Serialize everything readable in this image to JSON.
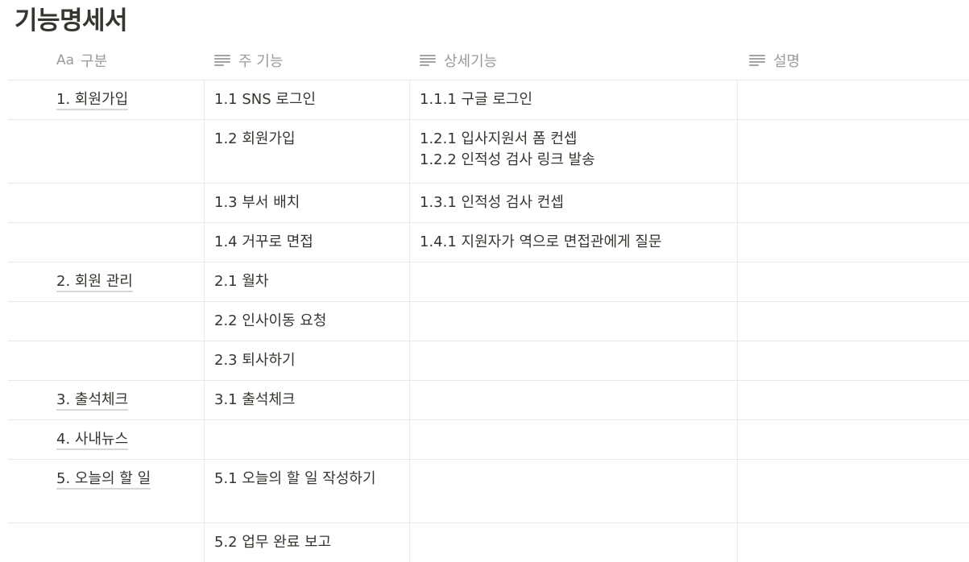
{
  "page": {
    "title": "기능명세서"
  },
  "columns": {
    "name_type_label": "Aa",
    "name": "구분",
    "main": "주 기능",
    "detail": "상세기능",
    "desc": "설명"
  },
  "rows": [
    {
      "category": "1. 회원가입",
      "main": "1.1 SNS 로그인",
      "detail": [
        "1.1.1 구글 로그인"
      ],
      "desc": ""
    },
    {
      "category": "",
      "main": "1.2 회원가입",
      "detail": [
        "1.2.1 입사지원서 폼 컨셉",
        "1.2.2 인적성 검사 링크 발송"
      ],
      "desc": ""
    },
    {
      "category": "",
      "main": "1.3 부서 배치",
      "detail": [
        "1.3.1 인적성 검사 컨셉"
      ],
      "desc": ""
    },
    {
      "category": "",
      "main": "1.4 거꾸로 면접",
      "detail": [
        "1.4.1 지원자가 역으로 면접관에게 질문"
      ],
      "desc": ""
    },
    {
      "category": "2. 회원 관리",
      "main": "2.1 월차",
      "detail": [],
      "desc": ""
    },
    {
      "category": "",
      "main": "2.2 인사이동 요청",
      "detail": [],
      "desc": ""
    },
    {
      "category": "",
      "main": "2.3 퇴사하기",
      "detail": [],
      "desc": ""
    },
    {
      "category": "3. 출석체크",
      "main": "3.1 출석체크",
      "detail": [],
      "desc": ""
    },
    {
      "category": "4. 사내뉴스",
      "main": "",
      "detail": [],
      "desc": ""
    },
    {
      "category": "5. 오늘의 할 일",
      "main": "5.1 오늘의 할 일 작성하기",
      "detail": [],
      "desc": ""
    },
    {
      "category": "",
      "main": "5.2 업무 완료 보고",
      "detail": [],
      "desc": ""
    }
  ]
}
